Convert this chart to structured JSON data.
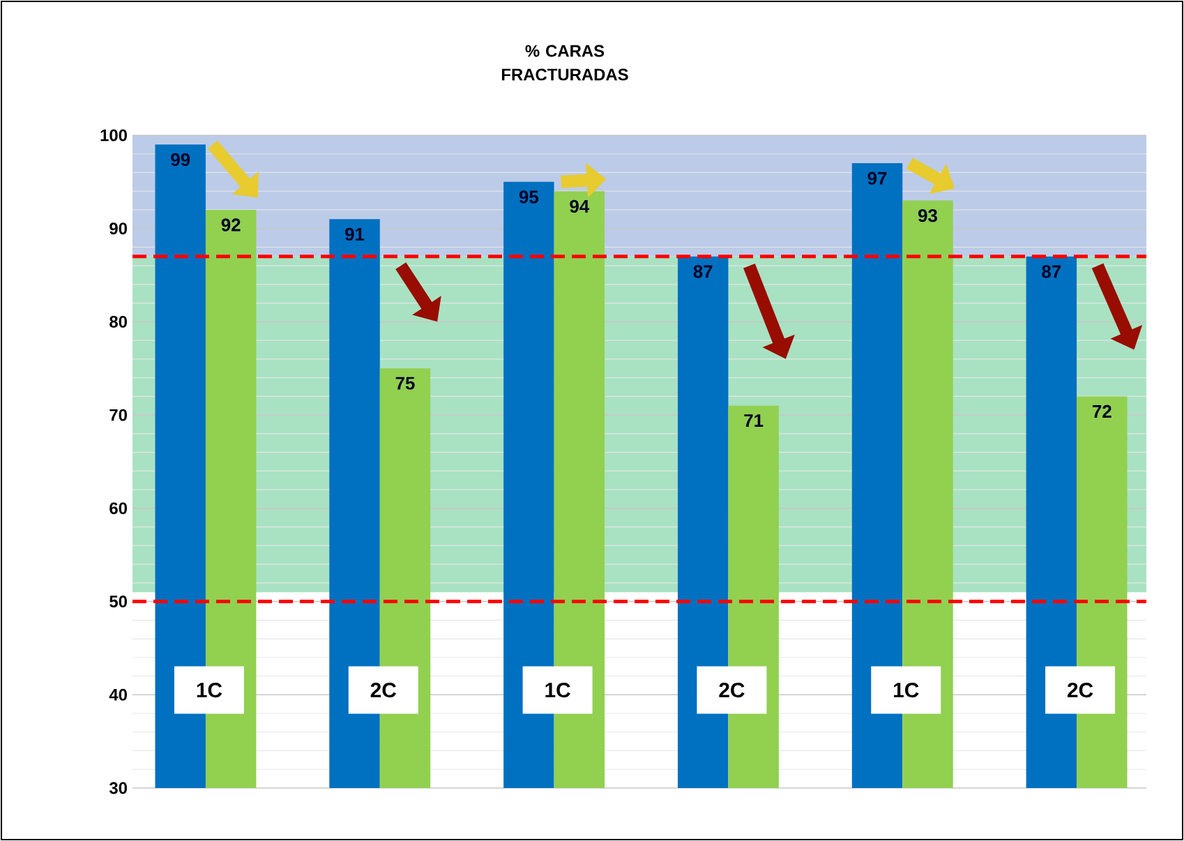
{
  "chart_data": {
    "type": "bar",
    "title": "% CARAS FRACTURADAS",
    "categories": [
      "1C",
      "2C",
      "1C",
      "2C",
      "1C",
      "2C"
    ],
    "series": [
      {
        "color": "#0070c0",
        "values": [
          99,
          91,
          95,
          87,
          97,
          87
        ]
      },
      {
        "color": "#92d050",
        "values": [
          92,
          75,
          94,
          71,
          93,
          72
        ]
      }
    ],
    "ylim": [
      30,
      100
    ],
    "yticks": [
      30,
      40,
      50,
      60,
      70,
      80,
      90,
      100
    ],
    "grid": "y",
    "data_labels": true,
    "bands": [
      {
        "axis": "y",
        "from": 87,
        "to": 100,
        "color": "#bccbe8"
      },
      {
        "axis": "y",
        "from": 51,
        "to": 87,
        "color": "#a8e2c2"
      }
    ],
    "ref_lines": [
      {
        "axis": "y",
        "value": 87,
        "color": "#ff0000",
        "line_style": "dashed"
      },
      {
        "axis": "y",
        "value": 50,
        "color": "#ff0000",
        "line_style": "dashed"
      }
    ]
  }
}
